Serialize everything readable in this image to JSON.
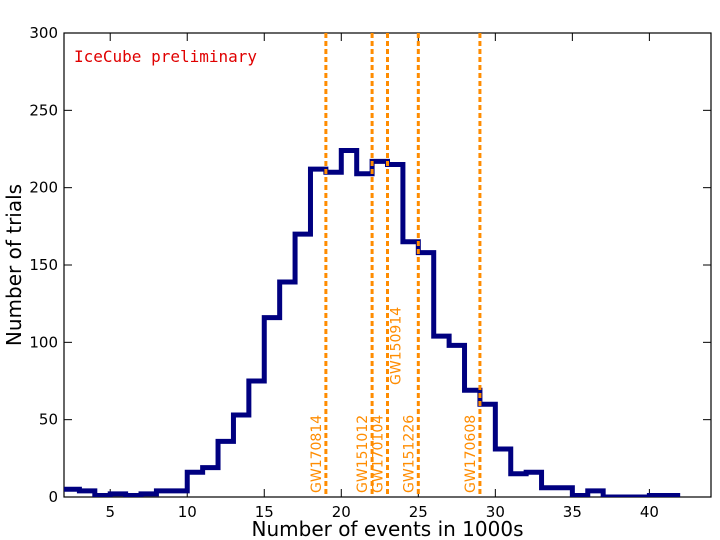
{
  "chart_data": {
    "type": "histogram",
    "xlabel": "Number of events in 1000s",
    "ylabel": "Number of trials",
    "xlim": [
      2,
      44
    ],
    "ylim": [
      0,
      300
    ],
    "xticks": [
      5,
      10,
      15,
      20,
      25,
      30,
      35,
      40
    ],
    "yticks": [
      0,
      50,
      100,
      150,
      200,
      250,
      300
    ],
    "annotation": "IceCube preliminary",
    "bin_width": 1,
    "bins": [
      {
        "x0": 2,
        "x1": 3,
        "value": 5
      },
      {
        "x0": 3,
        "x1": 4,
        "value": 4
      },
      {
        "x0": 4,
        "x1": 5,
        "value": 1
      },
      {
        "x0": 5,
        "x1": 6,
        "value": 2
      },
      {
        "x0": 6,
        "x1": 7,
        "value": 1
      },
      {
        "x0": 7,
        "x1": 8,
        "value": 2
      },
      {
        "x0": 8,
        "x1": 9,
        "value": 4
      },
      {
        "x0": 9,
        "x1": 10,
        "value": 4
      },
      {
        "x0": 10,
        "x1": 11,
        "value": 16
      },
      {
        "x0": 11,
        "x1": 12,
        "value": 19
      },
      {
        "x0": 12,
        "x1": 13,
        "value": 36
      },
      {
        "x0": 13,
        "x1": 14,
        "value": 53
      },
      {
        "x0": 14,
        "x1": 15,
        "value": 75
      },
      {
        "x0": 15,
        "x1": 16,
        "value": 116
      },
      {
        "x0": 16,
        "x1": 17,
        "value": 139
      },
      {
        "x0": 17,
        "x1": 18,
        "value": 170
      },
      {
        "x0": 18,
        "x1": 19,
        "value": 212
      },
      {
        "x0": 19,
        "x1": 20,
        "value": 210
      },
      {
        "x0": 20,
        "x1": 21,
        "value": 224
      },
      {
        "x0": 21,
        "x1": 22,
        "value": 209
      },
      {
        "x0": 22,
        "x1": 23,
        "value": 217
      },
      {
        "x0": 23,
        "x1": 24,
        "value": 215
      },
      {
        "x0": 24,
        "x1": 25,
        "value": 165
      },
      {
        "x0": 25,
        "x1": 26,
        "value": 158
      },
      {
        "x0": 26,
        "x1": 27,
        "value": 104
      },
      {
        "x0": 27,
        "x1": 28,
        "value": 98
      },
      {
        "x0": 28,
        "x1": 29,
        "value": 69
      },
      {
        "x0": 29,
        "x1": 30,
        "value": 60
      },
      {
        "x0": 30,
        "x1": 31,
        "value": 31
      },
      {
        "x0": 31,
        "x1": 32,
        "value": 15
      },
      {
        "x0": 32,
        "x1": 33,
        "value": 16
      },
      {
        "x0": 33,
        "x1": 35,
        "value": 6
      },
      {
        "x0": 35,
        "x1": 36,
        "value": 1
      },
      {
        "x0": 36,
        "x1": 37,
        "value": 4
      },
      {
        "x0": 37,
        "x1": 40,
        "value": 0
      },
      {
        "x0": 40,
        "x1": 42,
        "value": 1
      }
    ],
    "markers": [
      {
        "label": "GW170814",
        "x": 19
      },
      {
        "label": "GW151012",
        "x": 22
      },
      {
        "label": "GW170104",
        "x": 23
      },
      {
        "label": "GW150914",
        "x": 23
      },
      {
        "label": "GW151226",
        "x": 25
      },
      {
        "label": "GW170608",
        "x": 29
      }
    ],
    "colors": {
      "histogram": "#000080",
      "markers": "#ff8c00",
      "annotation": "#e00000",
      "axes": "#000000"
    },
    "grid": false
  }
}
